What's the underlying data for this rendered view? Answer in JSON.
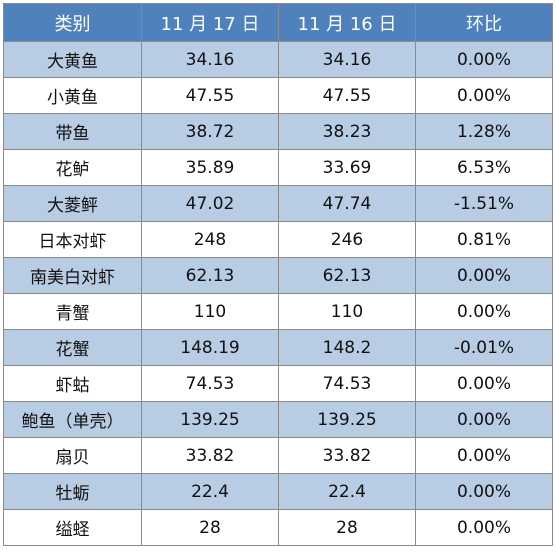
{
  "table": {
    "headers": [
      "类别",
      "11 月 17 日",
      "11 月 16 日",
      "环比"
    ],
    "rows": [
      [
        "大黄鱼",
        "34.16",
        "34.16",
        "0.00%"
      ],
      [
        "小黄鱼",
        "47.55",
        "47.55",
        "0.00%"
      ],
      [
        "带鱼",
        "38.72",
        "38.23",
        "1.28%"
      ],
      [
        "花鲈",
        "35.89",
        "33.69",
        "6.53%"
      ],
      [
        "大菱鲆",
        "47.02",
        "47.74",
        "-1.51%"
      ],
      [
        "日本对虾",
        "248",
        "246",
        "0.81%"
      ],
      [
        "南美白对虾",
        "62.13",
        "62.13",
        "0.00%"
      ],
      [
        "青蟹",
        "110",
        "110",
        "0.00%"
      ],
      [
        "花蟹",
        "148.19",
        "148.2",
        "-0.01%"
      ],
      [
        "虾蛄",
        "74.53",
        "74.53",
        "0.00%"
      ],
      [
        "鲍鱼（单壳）",
        "139.25",
        "139.25",
        "0.00%"
      ],
      [
        "扇贝",
        "33.82",
        "33.82",
        "0.00%"
      ],
      [
        "牡蛎",
        "22.4",
        "22.4",
        "0.00%"
      ],
      [
        "缢蛏",
        "28",
        "28",
        "0.00%"
      ]
    ]
  }
}
